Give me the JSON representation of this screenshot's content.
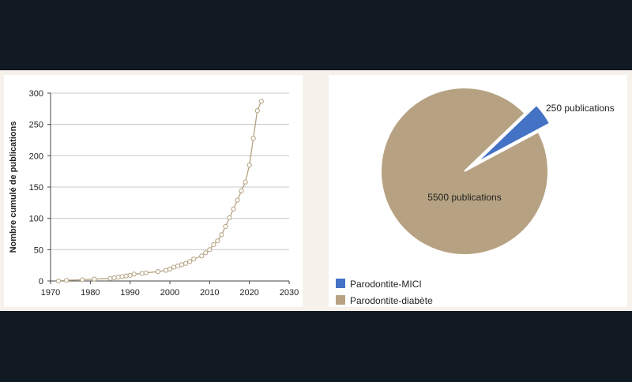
{
  "chart_data": [
    {
      "type": "line",
      "ylabel": "Nombre cumulé de publications",
      "xlabel": "",
      "xlim": [
        1970,
        2030
      ],
      "ylim": [
        0,
        300
      ],
      "xticks": [
        1970,
        1980,
        1990,
        2000,
        2010,
        2020,
        2030
      ],
      "yticks": [
        0,
        50,
        100,
        150,
        200,
        250,
        300
      ],
      "grid": "horizontal",
      "line_color": "#b5a282",
      "series": [
        {
          "x": [
            1972,
            1974,
            1978,
            1981,
            1985,
            1986,
            1987,
            1988,
            1989,
            1990,
            1991,
            1993,
            1994,
            1997,
            1999,
            2000,
            2001,
            2002,
            2003,
            2004,
            2005,
            2006,
            2008,
            2009,
            2010,
            2011,
            2012,
            2013,
            2014,
            2015,
            2016,
            2017,
            2018,
            2019,
            2020,
            2021,
            2022,
            2023
          ],
          "y": [
            0,
            1,
            2,
            3,
            4,
            5,
            6,
            7,
            8,
            9,
            11,
            12,
            13,
            15,
            17,
            19,
            22,
            24,
            26,
            28,
            31,
            35,
            40,
            45,
            50,
            58,
            64,
            74,
            87,
            101,
            115,
            129,
            144,
            158,
            185,
            228,
            272,
            287
          ]
        }
      ]
    },
    {
      "type": "pie",
      "slices": [
        {
          "label": "Parodontite-MICI",
          "value": 250,
          "data_label": "250 publications",
          "color": "#4472c4",
          "exploded": true
        },
        {
          "label": "Parodontite-diabète",
          "value": 5500,
          "data_label": "5500 publications",
          "color": "#b6a282",
          "exploded": false
        }
      ],
      "legend_position": "bottom-left"
    }
  ]
}
